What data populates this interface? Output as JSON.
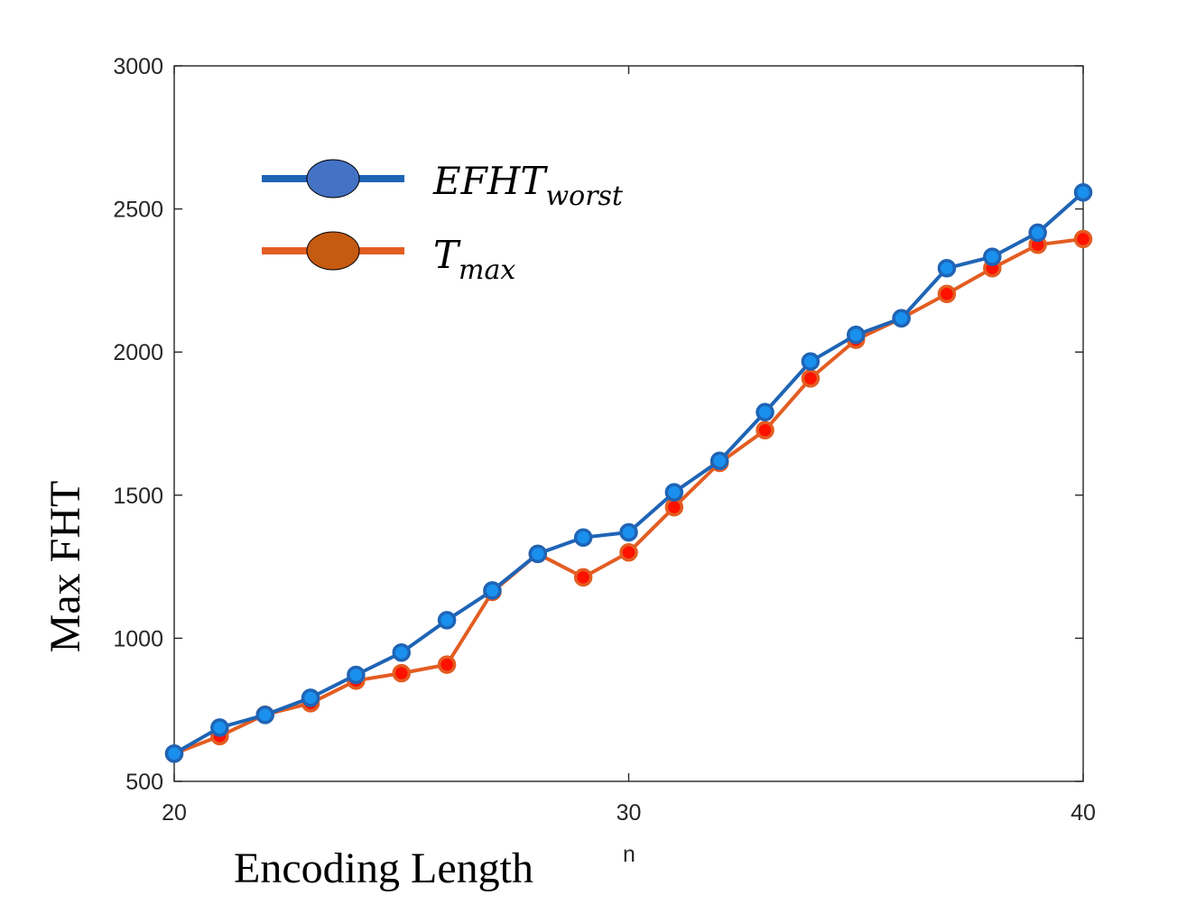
{
  "chart_data": {
    "type": "line",
    "x": [
      20,
      21,
      22,
      23,
      24,
      25,
      26,
      27,
      28,
      29,
      30,
      31,
      32,
      33,
      34,
      35,
      36,
      37,
      38,
      39,
      40
    ],
    "xlim": [
      20,
      40
    ],
    "ylim": [
      500,
      3000
    ],
    "xticks": [
      "20",
      "30",
      "40"
    ],
    "yticks": [
      "500",
      "1000",
      "1500",
      "2000",
      "2500",
      "3000"
    ],
    "xlabel": "Encoding Length",
    "xlabel_small": "n",
    "ylabel": "Max FHT",
    "grid": false,
    "legend_placement": "top-left",
    "series": [
      {
        "name": "EFHT",
        "subscript": "worst",
        "line_color": "#1f64b5",
        "marker_color": "#1a90ee",
        "values": [
          597,
          688,
          732,
          792,
          872,
          950,
          1063,
          1167,
          1295,
          1352,
          1370,
          1510,
          1620,
          1790,
          1967,
          2060,
          2118,
          2293,
          2333,
          2417,
          2558
        ]
      },
      {
        "name": "T",
        "subscript": "max",
        "line_color": "#e35d22",
        "marker_color": "#ff1100",
        "values": [
          597,
          658,
          733,
          773,
          852,
          878,
          908,
          1162,
          1295,
          1213,
          1300,
          1458,
          1613,
          1727,
          1908,
          2043,
          2118,
          2203,
          2293,
          2375,
          2395
        ]
      }
    ],
    "legend_marker_colors": [
      "#4472c4",
      "#c55a11"
    ]
  }
}
